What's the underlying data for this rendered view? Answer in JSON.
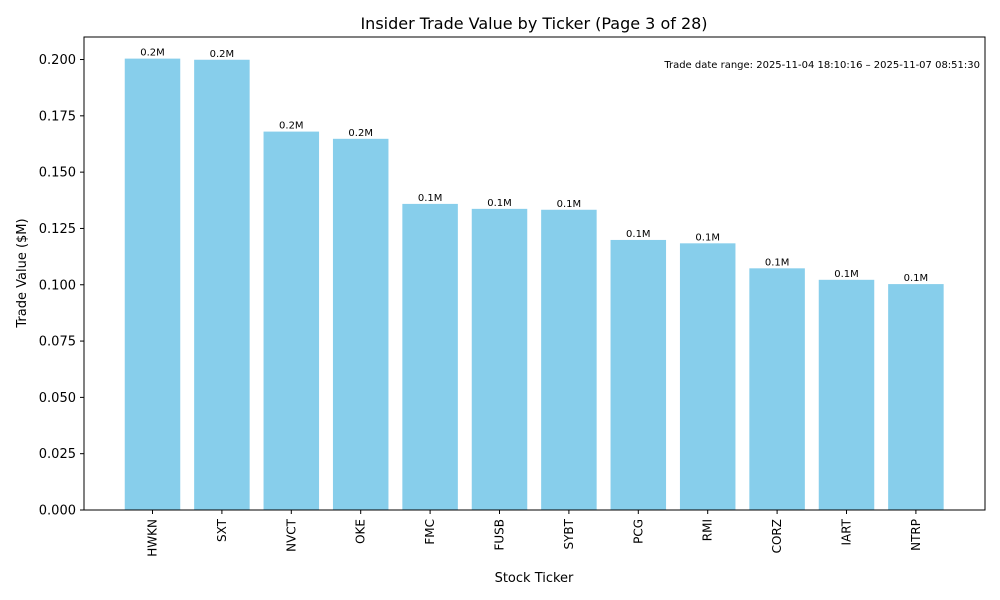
{
  "chart_data": {
    "type": "bar",
    "title": "Insider Trade Value by Ticker (Page 3 of 28)",
    "xlabel": "Stock Ticker",
    "ylabel": "Trade Value ($M)",
    "annotation": "Trade date range: 2025-11-04 18:10:16 – 2025-11-07 08:51:30",
    "categories": [
      "HWKN",
      "SXT",
      "NVCT",
      "OKE",
      "FMC",
      "FUSB",
      "SYBT",
      "PCG",
      "RMI",
      "CORZ",
      "IART",
      "NTRP"
    ],
    "values": [
      0.2004,
      0.1999,
      0.168,
      0.1648,
      0.1359,
      0.1337,
      0.1333,
      0.1199,
      0.1184,
      0.1073,
      0.1022,
      0.1003
    ],
    "data_labels": [
      "0.2M",
      "0.2M",
      "0.2M",
      "0.2M",
      "0.1M",
      "0.1M",
      "0.1M",
      "0.1M",
      "0.1M",
      "0.1M",
      "0.1M",
      "0.1M"
    ],
    "yticks": [
      "0.000",
      "0.025",
      "0.050",
      "0.075",
      "0.100",
      "0.125",
      "0.150",
      "0.175",
      "0.200"
    ],
    "ylim": [
      0,
      0.21
    ],
    "bar_color": "#87CEEB",
    "grid": false,
    "legend": "none"
  }
}
